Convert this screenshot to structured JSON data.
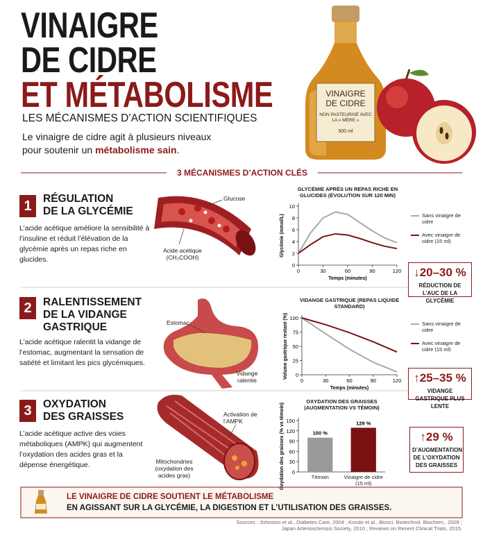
{
  "header": {
    "title_lines": [
      "VINAIGRE",
      "DE CIDRE",
      "ET MÉTABOLISME"
    ],
    "subtitle": "LES MÉCANISMES D’ACTION SCIENTIFIQUES",
    "intro": "Le vinaigre de cidre agit à plusieurs niveaux pour soutenir un",
    "intro_bold": "métabolisme sain",
    "intro_end": "."
  },
  "bottle": {
    "label": "VINAIGRE DE CIDRE",
    "sub": "NON PASTEURISÉ AVEC LA « MÈRE »",
    "volume": "500 ml"
  },
  "section_heading": "3 MÉCANISMES D’ACTION CLÉS",
  "sections": [
    {
      "number": "1",
      "title": [
        "RÉGULATION",
        "DE LA GLYCÉMIE"
      ],
      "text": "L’acide acétique améliore la sensibilité à l’insuline et réduit l’élévation de la glycémie après un repas riche en glucides.",
      "figure_labels": [
        "Glucose",
        "Acide acétique (CH₃COOH)"
      ],
      "callout_value": "↓20–30 %",
      "callout_text": "RÉDUCTION DE L’AUC DE LA GLYCÉMIE"
    },
    {
      "number": "2",
      "title": [
        "RALENTISSEMENT",
        "DE LA VIDANGE",
        "GASTRIQUE"
      ],
      "text": "L’acide acétique ralentit la vidange de l’estomac, augmentant la sensation de satiété et limitant les pics glycémiques.",
      "figure_labels": [
        "Estomac",
        "Vidange ralentie"
      ],
      "callout_value": "↑25–35 %",
      "callout_text": "VIDANGE GASTRIQUE PLUS LENTE"
    },
    {
      "number": "3",
      "title": [
        "OXYDATION",
        "DES GRAISSES"
      ],
      "text": "L’acide acétique active des voies métaboliques (AMPK) qui augmentent l’oxydation des acides gras et la dépense énergétique.",
      "figure_labels": [
        "Activation de l’AMPK",
        "Mitochondries (oxydation des acides gras)"
      ],
      "callout_value": "↑29 %",
      "callout_text": "D’AUGMENTATION DE L’OXYDATION DES GRAISSES"
    }
  ],
  "chart_data": [
    {
      "type": "line",
      "title": "GLYCÉMIE APRÈS UN REPAS RICHE EN GLUCIDES (ÉVOLUTION SUR 120 MIN)",
      "x_label": "Temps (minutes)",
      "y_label": "Glycémie (mmol/L)",
      "x": [
        0,
        15,
        30,
        45,
        60,
        75,
        90,
        105,
        120
      ],
      "series": [
        {
          "name": "Sans vinaigre de cidre",
          "color": "#a8a8a8",
          "values": [
            2.0,
            5.5,
            8.0,
            9.0,
            8.6,
            7.2,
            5.8,
            4.6,
            3.8
          ]
        },
        {
          "name": "Avec vinaigre de cidre (15 ml)",
          "color": "#7a1214",
          "values": [
            2.0,
            3.5,
            4.8,
            5.3,
            5.1,
            4.5,
            3.8,
            3.2,
            2.8
          ]
        }
      ],
      "xlim": [
        0,
        120
      ],
      "xticks": [
        0,
        30,
        60,
        90,
        120
      ],
      "ylim": [
        0,
        10
      ],
      "yticks": [
        0,
        2,
        4,
        6,
        8,
        10
      ]
    },
    {
      "type": "line",
      "title": "VIDANGE GASTRIQUE (REPAS LIQUIDE STANDARD)",
      "x_label": "Temps (minutes)",
      "y_label": "Volume gastrique restant (%)",
      "x": [
        0,
        30,
        60,
        90,
        120
      ],
      "series": [
        {
          "name": "Sans vinaigre de cidre",
          "color": "#a8a8a8",
          "values": [
            100,
            72,
            45,
            22,
            5
          ]
        },
        {
          "name": "Avec vinaigre de cidre (15 ml)",
          "color": "#7a1214",
          "values": [
            100,
            88,
            74,
            58,
            40
          ]
        }
      ],
      "xlim": [
        0,
        120
      ],
      "xticks": [
        0,
        30,
        60,
        90,
        120
      ],
      "ylim": [
        0,
        100
      ],
      "yticks": [
        0,
        25,
        50,
        75,
        100
      ]
    },
    {
      "type": "bar",
      "title": "OXYDATION DES GRAISSES (AUGMENTATION VS TÉMOIN)",
      "y_label": "Oxydation des graisses (% vs témoin)",
      "categories": [
        "Témoin",
        "Vinaigre de cidre (15 ml)"
      ],
      "values": [
        100,
        129
      ],
      "value_labels": [
        "100 %",
        "129 %"
      ],
      "colors": [
        "#9a9a9a",
        "#7a1214"
      ],
      "ylim": [
        0,
        150
      ],
      "yticks": [
        0,
        30,
        60,
        90,
        120,
        150
      ]
    }
  ],
  "footer": {
    "line1": "LE VINAIGRE DE CIDRE SOUTIENT LE MÉTABOLISME",
    "line2": "EN AGISSANT SUR LA GLYCÉMIE, LA DIGESTION ET L’UTILISATION DES GRAISSES.",
    "sources": [
      "Sources : Johnston et al., Diabetes Care, 2004 ; Kondo et al., Biosci. Biotechnol. Biochem., 2009 ;",
      "Japan Arteriosclerosis Society, 2010 ; Reviews on Recent Clinical Trials, 2015."
    ]
  }
}
